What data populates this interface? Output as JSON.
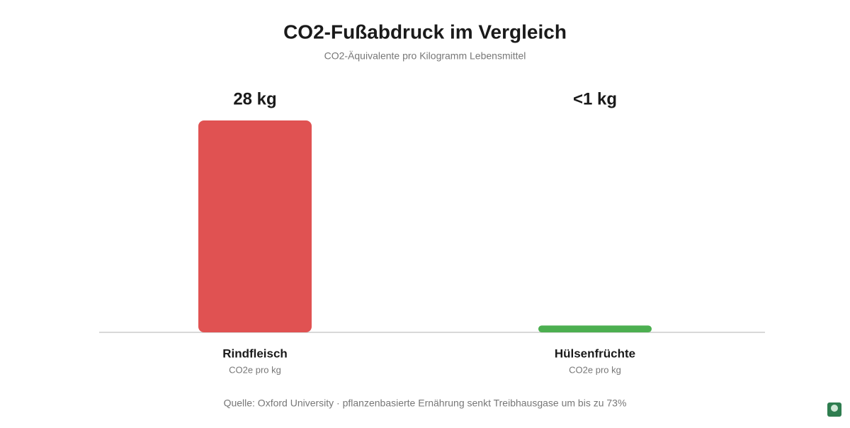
{
  "chart_data": {
    "type": "bar",
    "title": "CO2-Fußabdruck im Vergleich",
    "subtitle": "CO2-Äquivalente pro Kilogramm Lebensmittel",
    "categories": [
      "Rindfleisch",
      "Hülsenfrüchte"
    ],
    "category_sublabels": [
      "CO2e pro kg",
      "CO2e pro kg"
    ],
    "values": [
      28,
      0.9
    ],
    "value_labels": [
      "28 kg",
      "<1 kg"
    ],
    "colors": [
      "#e05252",
      "#4caf50"
    ],
    "source": "Quelle: Oxford University · pflanzenbasierte Ernährung senkt Treibhausgase um bis zu 73%"
  }
}
